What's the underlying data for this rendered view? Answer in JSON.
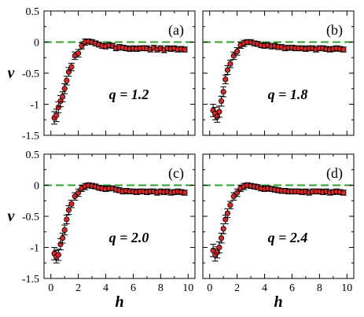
{
  "chart_data": [
    {
      "type": "scatter",
      "panel": "(a)",
      "annotation": "q = 1.2",
      "xlabel": "",
      "ylabel": "ν",
      "xlim": [
        -0.5,
        10.5
      ],
      "ylim": [
        -1.5,
        0.5
      ],
      "xticks": [
        0,
        2,
        4,
        6,
        8,
        10
      ],
      "yticks": [
        -1.5,
        -1,
        -0.5,
        0,
        0.5
      ],
      "xtick_labels": [
        "",
        "",
        "",
        "",
        "",
        ""
      ],
      "ytick_labels": [
        "-1.5",
        "-1",
        "-0.5",
        "0",
        "0.5"
      ],
      "reference_line": {
        "y": 0,
        "style": "dashed",
        "color": "#2ca02c"
      },
      "x": [
        0.25,
        0.4,
        0.55,
        0.7,
        0.85,
        1.0,
        1.15,
        1.3,
        1.5,
        1.75,
        2.0,
        2.25,
        2.5,
        2.75,
        3.0,
        3.25,
        3.5,
        3.75,
        4.0,
        4.25,
        4.5,
        4.75,
        5.0,
        5.25,
        5.5,
        5.75,
        6.0,
        6.25,
        6.5,
        6.75,
        7.0,
        7.25,
        7.5,
        7.75,
        8.0,
        8.25,
        8.5,
        8.75,
        9.0,
        9.25,
        9.5,
        9.75
      ],
      "y": [
        -1.22,
        -1.18,
        -1.05,
        -0.95,
        -0.88,
        -0.75,
        -0.62,
        -0.48,
        -0.4,
        -0.22,
        -0.18,
        -0.06,
        0.0,
        0.01,
        0.0,
        -0.02,
        -0.04,
        -0.06,
        -0.07,
        -0.05,
        -0.06,
        -0.1,
        -0.08,
        -0.09,
        -0.1,
        -0.11,
        -0.1,
        -0.11,
        -0.1,
        -0.1,
        -0.1,
        -0.12,
        -0.09,
        -0.12,
        -0.1,
        -0.13,
        -0.1,
        -0.11,
        -0.1,
        -0.12,
        -0.11,
        -0.12
      ],
      "err": [
        0.1,
        0.1,
        0.09,
        0.09,
        0.08,
        0.08,
        0.07,
        0.07,
        0.06,
        0.06,
        0.06,
        0.05,
        0.05,
        0.04,
        0.04,
        0.04,
        0.04,
        0.04,
        0.04,
        0.04,
        0.04,
        0.04,
        0.04,
        0.04,
        0.04,
        0.04,
        0.04,
        0.04,
        0.04,
        0.04,
        0.04,
        0.04,
        0.04,
        0.04,
        0.04,
        0.04,
        0.04,
        0.04,
        0.04,
        0.04,
        0.04,
        0.04
      ],
      "marker_color": "#d62728"
    },
    {
      "type": "scatter",
      "panel": "(b)",
      "annotation": "q = 1.8",
      "xlabel": "",
      "ylabel": "",
      "xlim": [
        -0.5,
        10.5
      ],
      "ylim": [
        -1.5,
        0.5
      ],
      "xticks": [
        0,
        2,
        4,
        6,
        8,
        10
      ],
      "yticks": [
        -1.5,
        -1,
        -0.5,
        0,
        0.5
      ],
      "xtick_labels": [
        "",
        "",
        "",
        "",
        "",
        ""
      ],
      "ytick_labels": [
        "",
        "",
        "",
        "",
        ""
      ],
      "reference_line": {
        "y": 0,
        "style": "dashed",
        "color": "#2ca02c"
      },
      "x": [
        0.25,
        0.4,
        0.55,
        0.7,
        0.85,
        1.0,
        1.15,
        1.3,
        1.5,
        1.75,
        2.0,
        2.25,
        2.5,
        2.75,
        3.0,
        3.25,
        3.5,
        3.75,
        4.0,
        4.25,
        4.5,
        4.75,
        5.0,
        5.25,
        5.5,
        5.75,
        6.0,
        6.25,
        6.5,
        6.75,
        7.0,
        7.25,
        7.5,
        7.75,
        8.0,
        8.25,
        8.5,
        8.75,
        9.0,
        9.25,
        9.5,
        9.75
      ],
      "y": [
        -1.1,
        -1.15,
        -1.2,
        -1.12,
        -0.95,
        -0.8,
        -0.6,
        -0.45,
        -0.35,
        -0.22,
        -0.15,
        -0.05,
        -0.02,
        0.0,
        0.0,
        -0.02,
        -0.03,
        -0.05,
        -0.06,
        -0.05,
        -0.07,
        -0.06,
        -0.08,
        -0.08,
        -0.1,
        -0.09,
        -0.09,
        -0.1,
        -0.1,
        -0.1,
        -0.11,
        -0.1,
        -0.1,
        -0.12,
        -0.1,
        -0.1,
        -0.11,
        -0.12,
        -0.11,
        -0.1,
        -0.11,
        -0.12
      ],
      "err": [
        0.1,
        0.1,
        0.09,
        0.09,
        0.08,
        0.08,
        0.07,
        0.07,
        0.06,
        0.06,
        0.06,
        0.05,
        0.05,
        0.04,
        0.04,
        0.04,
        0.04,
        0.04,
        0.04,
        0.04,
        0.04,
        0.04,
        0.04,
        0.04,
        0.04,
        0.04,
        0.04,
        0.04,
        0.04,
        0.04,
        0.04,
        0.04,
        0.04,
        0.04,
        0.04,
        0.04,
        0.04,
        0.04,
        0.04,
        0.04,
        0.04,
        0.04
      ],
      "marker_color": "#d62728"
    },
    {
      "type": "scatter",
      "panel": "(c)",
      "annotation": "q = 2.0",
      "xlabel": "h",
      "ylabel": "ν",
      "xlim": [
        -0.5,
        10.5
      ],
      "ylim": [
        -1.5,
        0.5
      ],
      "xticks": [
        0,
        2,
        4,
        6,
        8,
        10
      ],
      "yticks": [
        -1.5,
        -1,
        -0.5,
        0,
        0.5
      ],
      "xtick_labels": [
        "0",
        "2",
        "4",
        "6",
        "8",
        "10"
      ],
      "ytick_labels": [
        "-1.5",
        "-1",
        "-0.5",
        "0",
        "0.5"
      ],
      "reference_line": {
        "y": 0,
        "style": "dashed",
        "color": "#2ca02c"
      },
      "x": [
        0.25,
        0.4,
        0.55,
        0.7,
        0.85,
        1.0,
        1.15,
        1.3,
        1.5,
        1.75,
        2.0,
        2.25,
        2.5,
        2.75,
        3.0,
        3.25,
        3.5,
        3.75,
        4.0,
        4.25,
        4.5,
        4.75,
        5.0,
        5.25,
        5.5,
        5.75,
        6.0,
        6.25,
        6.5,
        6.75,
        7.0,
        7.25,
        7.5,
        7.75,
        8.0,
        8.25,
        8.5,
        8.75,
        9.0,
        9.25,
        9.5,
        9.75
      ],
      "y": [
        -1.1,
        -1.15,
        -1.12,
        -0.95,
        -0.85,
        -0.72,
        -0.55,
        -0.4,
        -0.3,
        -0.18,
        -0.12,
        -0.05,
        -0.02,
        0.0,
        -0.01,
        -0.02,
        -0.04,
        -0.05,
        -0.06,
        -0.05,
        -0.05,
        -0.07,
        -0.08,
        -0.1,
        -0.09,
        -0.1,
        -0.1,
        -0.11,
        -0.1,
        -0.1,
        -0.11,
        -0.1,
        -0.1,
        -0.12,
        -0.1,
        -0.11,
        -0.1,
        -0.12,
        -0.11,
        -0.1,
        -0.11,
        -0.12
      ],
      "err": [
        0.1,
        0.1,
        0.09,
        0.09,
        0.08,
        0.08,
        0.07,
        0.07,
        0.06,
        0.06,
        0.06,
        0.05,
        0.05,
        0.04,
        0.04,
        0.04,
        0.04,
        0.04,
        0.04,
        0.04,
        0.04,
        0.04,
        0.04,
        0.04,
        0.04,
        0.04,
        0.04,
        0.04,
        0.04,
        0.04,
        0.04,
        0.04,
        0.04,
        0.04,
        0.04,
        0.04,
        0.04,
        0.04,
        0.04,
        0.04,
        0.04,
        0.04
      ],
      "marker_color": "#d62728"
    },
    {
      "type": "scatter",
      "panel": "(d)",
      "annotation": "q = 2.4",
      "xlabel": "h",
      "ylabel": "",
      "xlim": [
        -0.5,
        10.5
      ],
      "ylim": [
        -1.5,
        0.5
      ],
      "xticks": [
        0,
        2,
        4,
        6,
        8,
        10
      ],
      "yticks": [
        -1.5,
        -1,
        -0.5,
        0,
        0.5
      ],
      "xtick_labels": [
        "0",
        "2",
        "4",
        "6",
        "8",
        "10"
      ],
      "ytick_labels": [
        "",
        "",
        "",
        "",
        ""
      ],
      "reference_line": {
        "y": 0,
        "style": "dashed",
        "color": "#2ca02c"
      },
      "x": [
        0.25,
        0.4,
        0.55,
        0.7,
        0.85,
        1.0,
        1.15,
        1.3,
        1.5,
        1.75,
        2.0,
        2.25,
        2.5,
        2.75,
        3.0,
        3.25,
        3.5,
        3.75,
        4.0,
        4.25,
        4.5,
        4.75,
        5.0,
        5.25,
        5.5,
        5.75,
        6.0,
        6.25,
        6.5,
        6.75,
        7.0,
        7.25,
        7.5,
        7.75,
        8.0,
        8.25,
        8.5,
        8.75,
        9.0,
        9.25,
        9.5,
        9.75
      ],
      "y": [
        -1.05,
        -1.12,
        -1.08,
        -1.0,
        -0.85,
        -0.7,
        -0.55,
        -0.45,
        -0.32,
        -0.18,
        -0.12,
        -0.05,
        -0.02,
        0.0,
        -0.01,
        -0.02,
        -0.03,
        -0.05,
        -0.06,
        -0.05,
        -0.06,
        -0.07,
        -0.08,
        -0.09,
        -0.09,
        -0.1,
        -0.1,
        -0.1,
        -0.1,
        -0.11,
        -0.1,
        -0.12,
        -0.1,
        -0.1,
        -0.1,
        -0.11,
        -0.1,
        -0.12,
        -0.11,
        -0.1,
        -0.11,
        -0.12
      ],
      "err": [
        0.1,
        0.1,
        0.09,
        0.09,
        0.08,
        0.08,
        0.07,
        0.07,
        0.06,
        0.06,
        0.06,
        0.05,
        0.05,
        0.04,
        0.04,
        0.04,
        0.04,
        0.04,
        0.04,
        0.04,
        0.04,
        0.04,
        0.04,
        0.04,
        0.04,
        0.04,
        0.04,
        0.04,
        0.04,
        0.04,
        0.04,
        0.04,
        0.04,
        0.04,
        0.04,
        0.04,
        0.04,
        0.04,
        0.04,
        0.04,
        0.04,
        0.04
      ],
      "marker_color": "#d62728"
    }
  ]
}
